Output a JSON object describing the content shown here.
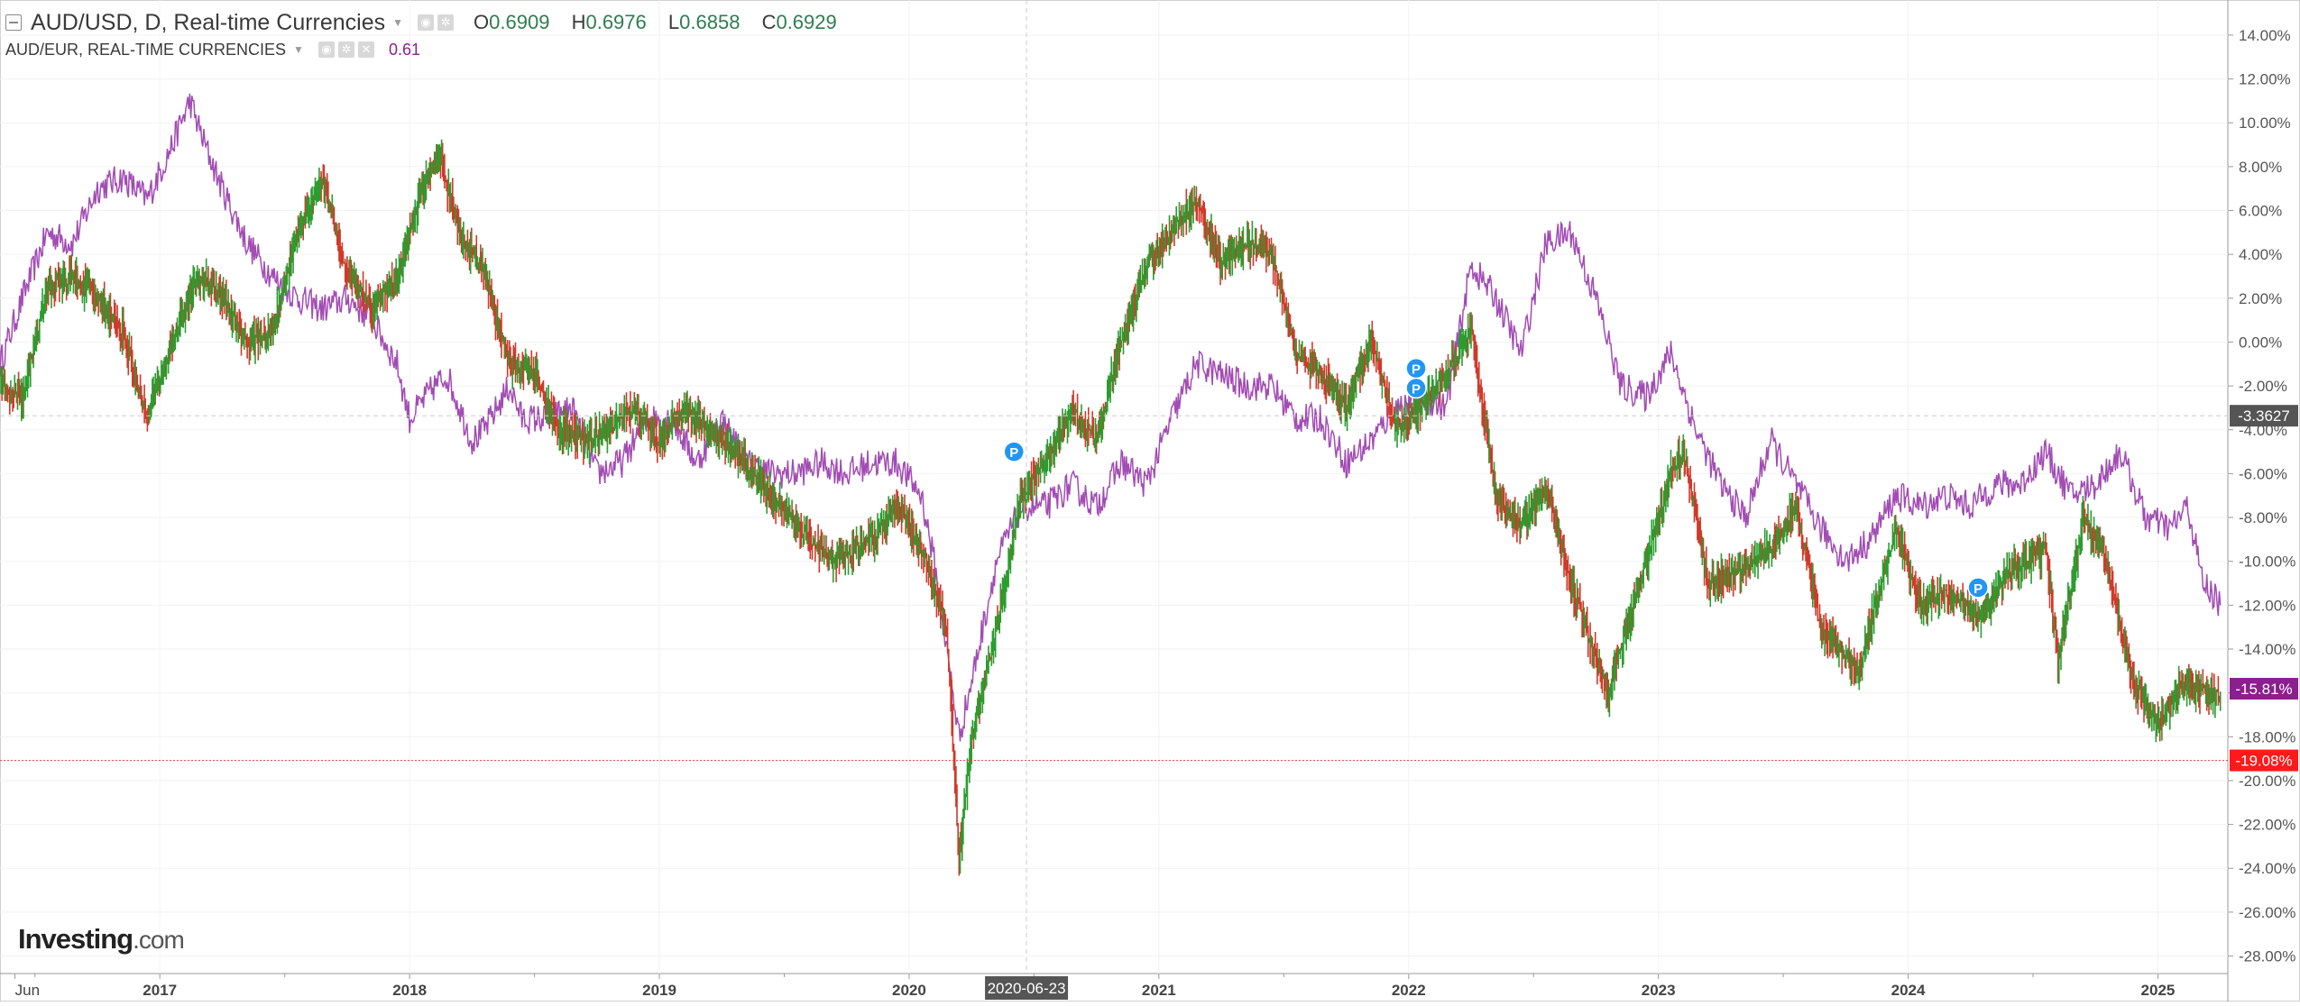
{
  "header": {
    "main_title": "AUD/USD, D, Real-time Currencies",
    "ohlc": {
      "o_label": "O",
      "o_value": "0.6909",
      "h_label": "H",
      "h_value": "0.6976",
      "l_label": "L",
      "l_value": "0.6858",
      "c_label": "C",
      "c_value": "0.6929"
    },
    "compare_title": "AUD/EUR, REAL-TIME CURRENCIES",
    "compare_value": "0.61"
  },
  "logo": {
    "brand": "Investing",
    "suffix": ".com"
  },
  "colors": {
    "up": "#2a9d2f",
    "down": "#d03a2a",
    "compare_line": "#a24cb4",
    "price_line": "#ff3333",
    "purple_tag": "#8b1f8f",
    "crosshair": "#cccccc",
    "marker": "#2196f3",
    "axis_text": "#555555"
  },
  "chart_data": {
    "type": "line",
    "title": "AUD/USD, D, Real-time Currencies",
    "xlabel": "",
    "ylabel": "",
    "y_unit": "%",
    "ylim": [
      -28.8,
      15.6
    ],
    "y_ticks": [
      14,
      12,
      10,
      8,
      6,
      4,
      2,
      0,
      -2,
      -4,
      -6,
      -8,
      -10,
      -12,
      -14,
      -16,
      -18,
      -20,
      -22,
      -24,
      -26,
      -28
    ],
    "y_tick_labels": [
      "14.00%",
      "12.00%",
      "10.00%",
      "8.00%",
      "6.00%",
      "4.00%",
      "2.00%",
      "0.00%",
      "-2.00%",
      "-4.00%",
      "-6.00%",
      "-8.00%",
      "-10.00%",
      "-12.00%",
      "-14.00%",
      "-16.00%",
      "-18.00%",
      "-20.00%",
      "-22.00%",
      "-24.00%",
      "-26.00%",
      "-28.00%"
    ],
    "xlim": [
      2016.36,
      2025.28
    ],
    "x_ticks": [
      {
        "label": "Jun",
        "x": 2016.42
      },
      {
        "label": "2017",
        "x": 2017.0
      },
      {
        "label": "2018",
        "x": 2018.0
      },
      {
        "label": "2019",
        "x": 2019.0
      },
      {
        "label": "2020",
        "x": 2020.0
      },
      {
        "label": "2021",
        "x": 2021.0
      },
      {
        "label": "2022",
        "x": 2022.0
      },
      {
        "label": "2023",
        "x": 2023.0
      },
      {
        "label": "2024",
        "x": 2024.0
      },
      {
        "label": "2025",
        "x": 2025.0
      }
    ],
    "grid": true,
    "crosshair": {
      "x": 2020.47,
      "date_label": "2020-06-23",
      "y": -3.36,
      "y_label": "-3.3627"
    },
    "current_tags": [
      {
        "label": "-15.81%",
        "y": -15.81,
        "color": "#8b1f8f"
      },
      {
        "label": "-19.08%",
        "y": -19.08,
        "color": "#ff1a1a"
      }
    ],
    "markers": [
      {
        "label": "P",
        "x": 2020.42,
        "y": -5.0
      },
      {
        "label": "P",
        "x": 2022.03,
        "y": -1.2
      },
      {
        "label": "P",
        "x": 2022.03,
        "y": -2.1
      },
      {
        "label": "P",
        "x": 2024.28,
        "y": -11.2
      }
    ],
    "series": [
      {
        "name": "AUD/USD",
        "kind": "candlestick",
        "points": [
          [
            2016.36,
            -2.0
          ],
          [
            2016.45,
            -2.5
          ],
          [
            2016.55,
            2.5
          ],
          [
            2016.65,
            3.0
          ],
          [
            2016.75,
            2.0
          ],
          [
            2016.85,
            0.5
          ],
          [
            2016.95,
            -3.5
          ],
          [
            2017.05,
            0.0
          ],
          [
            2017.15,
            3.0
          ],
          [
            2017.25,
            2.0
          ],
          [
            2017.35,
            0.0
          ],
          [
            2017.45,
            0.5
          ],
          [
            2017.55,
            5.0
          ],
          [
            2017.65,
            7.5
          ],
          [
            2017.75,
            3.0
          ],
          [
            2017.85,
            1.5
          ],
          [
            2017.95,
            3.0
          ],
          [
            2018.05,
            7.0
          ],
          [
            2018.12,
            8.5
          ],
          [
            2018.2,
            5.0
          ],
          [
            2018.3,
            3.0
          ],
          [
            2018.4,
            -1.0
          ],
          [
            2018.5,
            -1.5
          ],
          [
            2018.6,
            -4.0
          ],
          [
            2018.7,
            -4.5
          ],
          [
            2018.8,
            -4.0
          ],
          [
            2018.9,
            -3.0
          ],
          [
            2019.0,
            -4.5
          ],
          [
            2019.1,
            -3.0
          ],
          [
            2019.2,
            -4.0
          ],
          [
            2019.3,
            -5.0
          ],
          [
            2019.45,
            -7.0
          ],
          [
            2019.6,
            -9.0
          ],
          [
            2019.7,
            -10.0
          ],
          [
            2019.85,
            -9.0
          ],
          [
            2019.95,
            -7.5
          ],
          [
            2020.05,
            -9.5
          ],
          [
            2020.15,
            -13.0
          ],
          [
            2020.2,
            -23.5
          ],
          [
            2020.25,
            -18.0
          ],
          [
            2020.35,
            -13.0
          ],
          [
            2020.45,
            -7.0
          ],
          [
            2020.55,
            -5.5
          ],
          [
            2020.65,
            -3.0
          ],
          [
            2020.75,
            -4.5
          ],
          [
            2020.85,
            0.0
          ],
          [
            2020.95,
            3.5
          ],
          [
            2021.05,
            5.0
          ],
          [
            2021.15,
            6.5
          ],
          [
            2021.25,
            3.5
          ],
          [
            2021.35,
            4.5
          ],
          [
            2021.45,
            4.0
          ],
          [
            2021.55,
            -0.5
          ],
          [
            2021.65,
            -1.5
          ],
          [
            2021.75,
            -3.0
          ],
          [
            2021.85,
            0.0
          ],
          [
            2021.95,
            -4.0
          ],
          [
            2022.05,
            -3.0
          ],
          [
            2022.15,
            -1.5
          ],
          [
            2022.25,
            0.5
          ],
          [
            2022.35,
            -7.0
          ],
          [
            2022.45,
            -8.5
          ],
          [
            2022.55,
            -6.5
          ],
          [
            2022.65,
            -11.0
          ],
          [
            2022.8,
            -16.0
          ],
          [
            2022.9,
            -12.0
          ],
          [
            2023.05,
            -6.0
          ],
          [
            2023.1,
            -5.0
          ],
          [
            2023.2,
            -11.0
          ],
          [
            2023.3,
            -10.5
          ],
          [
            2023.45,
            -9.5
          ],
          [
            2023.55,
            -7.5
          ],
          [
            2023.65,
            -13.0
          ],
          [
            2023.8,
            -15.0
          ],
          [
            2023.95,
            -8.5
          ],
          [
            2024.05,
            -12.0
          ],
          [
            2024.15,
            -11.5
          ],
          [
            2024.3,
            -12.5
          ],
          [
            2024.4,
            -10.5
          ],
          [
            2024.55,
            -9.5
          ],
          [
            2024.6,
            -14.5
          ],
          [
            2024.7,
            -8.0
          ],
          [
            2024.78,
            -9.5
          ],
          [
            2024.9,
            -15.5
          ],
          [
            2025.0,
            -17.5
          ],
          [
            2025.1,
            -15.5
          ],
          [
            2025.2,
            -16.0
          ],
          [
            2025.25,
            -16.2
          ]
        ]
      },
      {
        "name": "AUD/EUR",
        "kind": "line",
        "points": [
          [
            2016.36,
            -1.0
          ],
          [
            2016.45,
            2.0
          ],
          [
            2016.55,
            5.0
          ],
          [
            2016.65,
            4.5
          ],
          [
            2016.75,
            7.0
          ],
          [
            2016.85,
            7.5
          ],
          [
            2016.95,
            6.5
          ],
          [
            2017.05,
            9.0
          ],
          [
            2017.12,
            11.0
          ],
          [
            2017.18,
            9.0
          ],
          [
            2017.25,
            7.0
          ],
          [
            2017.35,
            4.5
          ],
          [
            2017.45,
            3.0
          ],
          [
            2017.55,
            2.0
          ],
          [
            2017.65,
            1.5
          ],
          [
            2017.75,
            2.0
          ],
          [
            2017.85,
            1.0
          ],
          [
            2017.95,
            -1.0
          ],
          [
            2018.0,
            -3.5
          ],
          [
            2018.1,
            -2.0
          ],
          [
            2018.15,
            -1.5
          ],
          [
            2018.25,
            -4.5
          ],
          [
            2018.3,
            -4.0
          ],
          [
            2018.4,
            -2.0
          ],
          [
            2018.45,
            -3.5
          ],
          [
            2018.55,
            -3.5
          ],
          [
            2018.65,
            -3.0
          ],
          [
            2018.75,
            -6.0
          ],
          [
            2018.85,
            -5.5
          ],
          [
            2018.95,
            -3.5
          ],
          [
            2019.05,
            -3.5
          ],
          [
            2019.15,
            -5.5
          ],
          [
            2019.25,
            -3.5
          ],
          [
            2019.35,
            -5.5
          ],
          [
            2019.45,
            -6.0
          ],
          [
            2019.55,
            -6.0
          ],
          [
            2019.65,
            -5.5
          ],
          [
            2019.75,
            -6.0
          ],
          [
            2019.85,
            -5.5
          ],
          [
            2019.95,
            -5.5
          ],
          [
            2020.05,
            -7.0
          ],
          [
            2020.1,
            -10.0
          ],
          [
            2020.2,
            -18.0
          ],
          [
            2020.25,
            -15.5
          ],
          [
            2020.35,
            -10.0
          ],
          [
            2020.45,
            -7.5
          ],
          [
            2020.55,
            -7.5
          ],
          [
            2020.65,
            -6.5
          ],
          [
            2020.75,
            -7.5
          ],
          [
            2020.85,
            -5.5
          ],
          [
            2020.95,
            -6.5
          ],
          [
            2021.05,
            -3.5
          ],
          [
            2021.15,
            -1.0
          ],
          [
            2021.25,
            -1.5
          ],
          [
            2021.35,
            -2.0
          ],
          [
            2021.45,
            -2.0
          ],
          [
            2021.55,
            -3.5
          ],
          [
            2021.65,
            -3.5
          ],
          [
            2021.75,
            -5.5
          ],
          [
            2021.85,
            -4.5
          ],
          [
            2021.95,
            -3.0
          ],
          [
            2022.05,
            -2.5
          ],
          [
            2022.15,
            -3.0
          ],
          [
            2022.25,
            3.5
          ],
          [
            2022.35,
            2.0
          ],
          [
            2022.45,
            -0.5
          ],
          [
            2022.55,
            4.5
          ],
          [
            2022.65,
            5.0
          ],
          [
            2022.75,
            2.0
          ],
          [
            2022.85,
            -2.0
          ],
          [
            2022.95,
            -2.5
          ],
          [
            2023.05,
            -0.5
          ],
          [
            2023.15,
            -4.0
          ],
          [
            2023.25,
            -6.5
          ],
          [
            2023.35,
            -8.0
          ],
          [
            2023.45,
            -4.5
          ],
          [
            2023.55,
            -6.5
          ],
          [
            2023.65,
            -8.5
          ],
          [
            2023.75,
            -10.0
          ],
          [
            2023.85,
            -9.0
          ],
          [
            2023.95,
            -7.0
          ],
          [
            2024.05,
            -7.5
          ],
          [
            2024.15,
            -7.0
          ],
          [
            2024.25,
            -7.5
          ],
          [
            2024.35,
            -6.5
          ],
          [
            2024.45,
            -6.5
          ],
          [
            2024.55,
            -5.0
          ],
          [
            2024.65,
            -7.0
          ],
          [
            2024.75,
            -6.5
          ],
          [
            2024.85,
            -5.0
          ],
          [
            2024.95,
            -8.0
          ],
          [
            2025.05,
            -8.5
          ],
          [
            2025.12,
            -7.5
          ],
          [
            2025.18,
            -11.0
          ],
          [
            2025.22,
            -11.5
          ],
          [
            2025.25,
            -12.0
          ]
        ]
      }
    ]
  }
}
